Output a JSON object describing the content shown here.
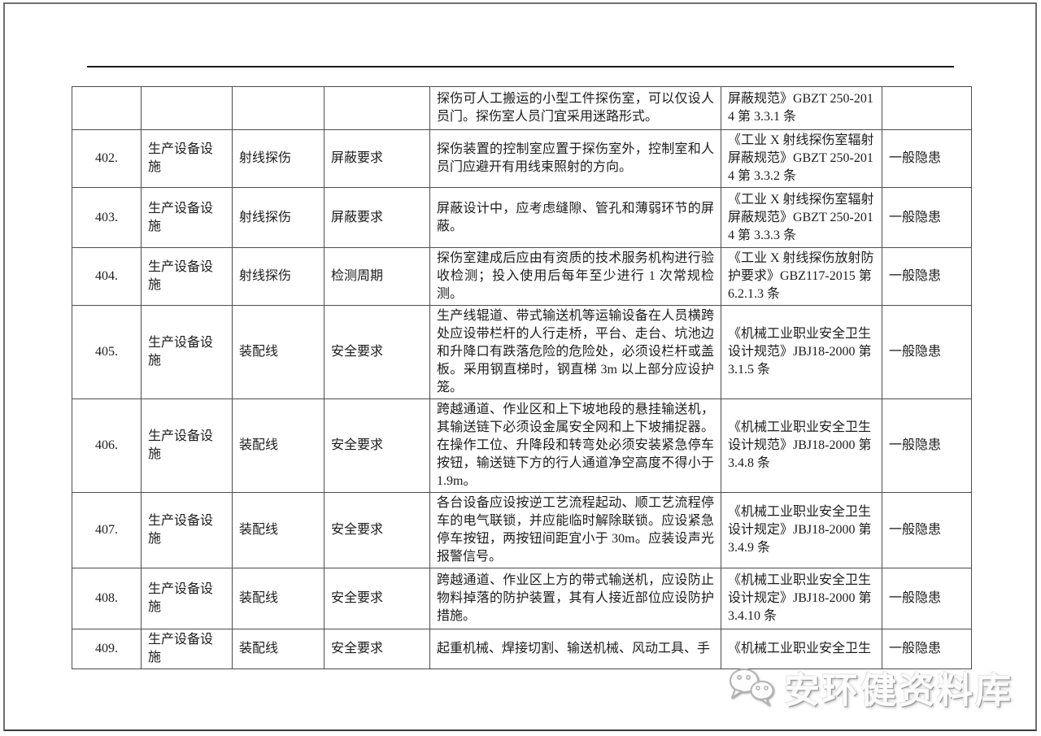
{
  "watermark": {
    "text": "安环健资料库",
    "icon": "wechat-icon"
  },
  "table": {
    "rows": [
      {
        "num": "",
        "category": "",
        "sub": "",
        "item": "",
        "content": "探伤可人工搬运的小型工件探伤室，可以仅设人员门。探伤室人员门宜采用迷路形式。",
        "basis": "屏蔽规范》GBZT 250-2014 第 3.3.1 条",
        "level": ""
      },
      {
        "num": "402.",
        "category": "生产设备设施",
        "sub": "射线探伤",
        "item": "屏蔽要求",
        "content": "探伤装置的控制室应置于探伤室外，控制室和人员门应避开有用线束照射的方向。",
        "basis": "《工业 X 射线探伤室辐射屏蔽规范》GBZT 250-2014 第 3.3.2 条",
        "level": "一般隐患"
      },
      {
        "num": "403.",
        "category": "生产设备设施",
        "sub": "射线探伤",
        "item": "屏蔽要求",
        "content": "屏蔽设计中，应考虑缝隙、管孔和薄弱环节的屏蔽。",
        "basis": "《工业 X 射线探伤室辐射屏蔽规范》GBZT 250-2014 第 3.3.3 条",
        "level": "一般隐患"
      },
      {
        "num": "404.",
        "category": "生产设备设施",
        "sub": "射线探伤",
        "item": "检测周期",
        "content": "探伤室建成后应由有资质的技术服务机构进行验收检测；投入使用后每年至少进行 1 次常规检测。",
        "basis": "《工业 X 射线探伤放射防护要求》GBZ117-2015 第 6.2.1.3 条",
        "level": "一般隐患"
      },
      {
        "num": "405.",
        "category": "生产设备设施",
        "sub": "装配线",
        "item": "安全要求",
        "content": "生产线辊道、带式输送机等运输设备在人员横跨处应设带栏杆的人行走桥，平台、走台、坑池边和升降口有跌落危险的危险处，必须设栏杆或盖板。采用钢直梯时，钢直梯 3m 以上部分应设护笼。",
        "basis": "《机械工业职业安全卫生设计规范》JBJ18-2000 第 3.1.5 条",
        "level": "一般隐患"
      },
      {
        "num": "406.",
        "category": "生产设备设施",
        "sub": "装配线",
        "item": "安全要求",
        "content": "跨越通道、作业区和上下坡地段的悬挂输送机，其输送链下必须设金属安全网和上下坡捕捉器。在操作工位、升降段和转弯处必须安装紧急停车按钮，输送链下方的行人通道净空高度不得小于 1.9m。",
        "basis": "《机械工业职业安全卫生设计规范》JBJ18-2000 第 3.4.8 条",
        "level": "一般隐患"
      },
      {
        "num": "407.",
        "category": "生产设备设施",
        "sub": "装配线",
        "item": "安全要求",
        "content": "各台设备应设按逆工艺流程起动、顺工艺流程停车的电气联锁，并应能临时解除联锁。应设紧急停车按钮，两按钮间距宜小于 30m。应装设声光报警信号。",
        "basis": "《机械工业职业安全卫生设计规定》JBJ18-2000 第 3.4.9 条",
        "level": "一般隐患"
      },
      {
        "num": "408.",
        "category": "生产设备设施",
        "sub": "装配线",
        "item": "安全要求",
        "content": "跨越通道、作业区上方的带式输送机，应设防止物料掉落的防护装置，其有人接近部位应设防护措施。",
        "basis": "《机械工业职业安全卫生设计规定》JBJ18-2000 第 3.4.10 条",
        "level": "一般隐患"
      },
      {
        "num": "409.",
        "category": "生产设备设施",
        "sub": "装配线",
        "item": "安全要求",
        "content": "起重机械、焊接切割、输送机械、风动工具、手",
        "basis": "《机械工业职业安全卫生",
        "level": "一般隐患"
      }
    ]
  }
}
